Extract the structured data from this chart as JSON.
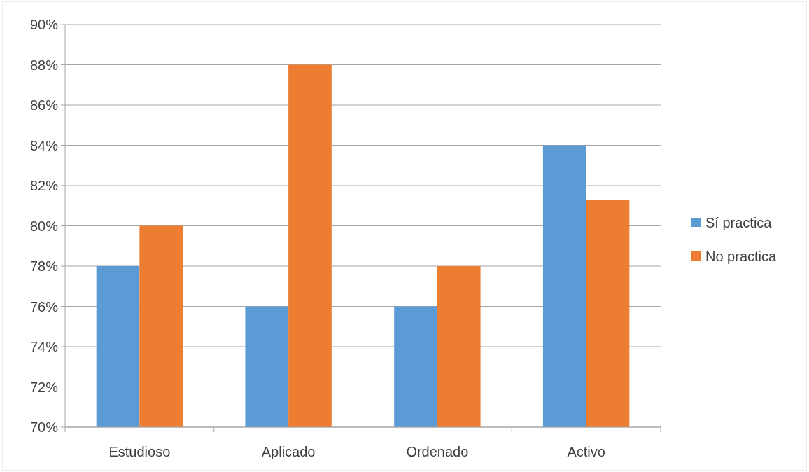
{
  "chart_data": {
    "type": "bar",
    "categories": [
      "Estudioso",
      "Aplicado",
      "Ordenado",
      "Activo"
    ],
    "series": [
      {
        "name": "Sí practica",
        "color": "#5b9bd5",
        "values": [
          78,
          76,
          76,
          84
        ]
      },
      {
        "name": "No practica",
        "color": "#ed7d31",
        "values": [
          80,
          88,
          78,
          81.3
        ]
      }
    ],
    "ylim": [
      70,
      90
    ],
    "yticks": [
      {
        "value": 70,
        "label": "70%"
      },
      {
        "value": 72,
        "label": "72%"
      },
      {
        "value": 74,
        "label": "74%"
      },
      {
        "value": 76,
        "label": "76%"
      },
      {
        "value": 78,
        "label": "78%"
      },
      {
        "value": 80,
        "label": "80%"
      },
      {
        "value": 82,
        "label": "82%"
      },
      {
        "value": 84,
        "label": "84%"
      },
      {
        "value": 86,
        "label": "86%"
      },
      {
        "value": 88,
        "label": "88%"
      },
      {
        "value": 90,
        "label": "90%"
      }
    ],
    "grid": "y",
    "legend": "right"
  }
}
